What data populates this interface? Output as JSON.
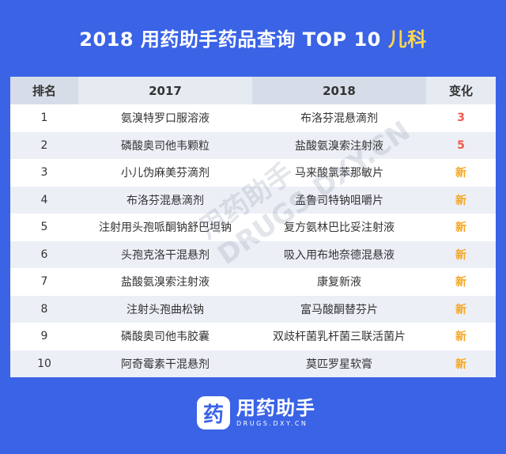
{
  "title": {
    "main": "2018 用药助手药品查询 TOP 10 ",
    "highlight": "儿科"
  },
  "table": {
    "headers": [
      "排名",
      "2017",
      "2018",
      "变化"
    ],
    "rows": [
      {
        "rank": "1",
        "y2017": "氨溴特罗口服溶液",
        "y2018": "布洛芬混悬滴剂",
        "change": "3",
        "change_color": "#f05a4a"
      },
      {
        "rank": "2",
        "y2017": "磷酸奥司他韦颗粒",
        "y2018": "盐酸氨溴索注射液",
        "change": "5",
        "change_color": "#f05a4a"
      },
      {
        "rank": "3",
        "y2017": "小儿伪麻美芬滴剂",
        "y2018": "马来酸氯苯那敏片",
        "change": "新",
        "change_color": "#f5a623"
      },
      {
        "rank": "4",
        "y2017": "布洛芬混悬滴剂",
        "y2018": "孟鲁司特钠咀嚼片",
        "change": "新",
        "change_color": "#f5a623"
      },
      {
        "rank": "5",
        "y2017": "注射用头孢哌酮钠舒巴坦钠",
        "y2018": "复方氨林巴比妥注射液",
        "change": "新",
        "change_color": "#f5a623"
      },
      {
        "rank": "6",
        "y2017": "头孢克洛干混悬剂",
        "y2018": "吸入用布地奈德混悬液",
        "change": "新",
        "change_color": "#f5a623"
      },
      {
        "rank": "7",
        "y2017": "盐酸氨溴索注射液",
        "y2018": "康复新液",
        "change": "新",
        "change_color": "#f5a623"
      },
      {
        "rank": "8",
        "y2017": "注射头孢曲松钠",
        "y2018": "富马酸酮替芬片",
        "change": "新",
        "change_color": "#f5a623"
      },
      {
        "rank": "9",
        "y2017": "磷酸奥司他韦胶囊",
        "y2018": "双歧杆菌乳杆菌三联活菌片",
        "change": "新",
        "change_color": "#f5a623"
      },
      {
        "rank": "10",
        "y2017": "阿奇霉素干混悬剂",
        "y2018": "莫匹罗星软膏",
        "change": "新",
        "change_color": "#f5a623"
      }
    ]
  },
  "watermark": "用药助手 DRUGS.DXY.CN",
  "logo": {
    "mark": "药",
    "name": "用药助手",
    "url": "DRUGS.DXY.CN"
  },
  "colors": {
    "background": "#3a63e6",
    "highlight": "#ffd84a"
  }
}
